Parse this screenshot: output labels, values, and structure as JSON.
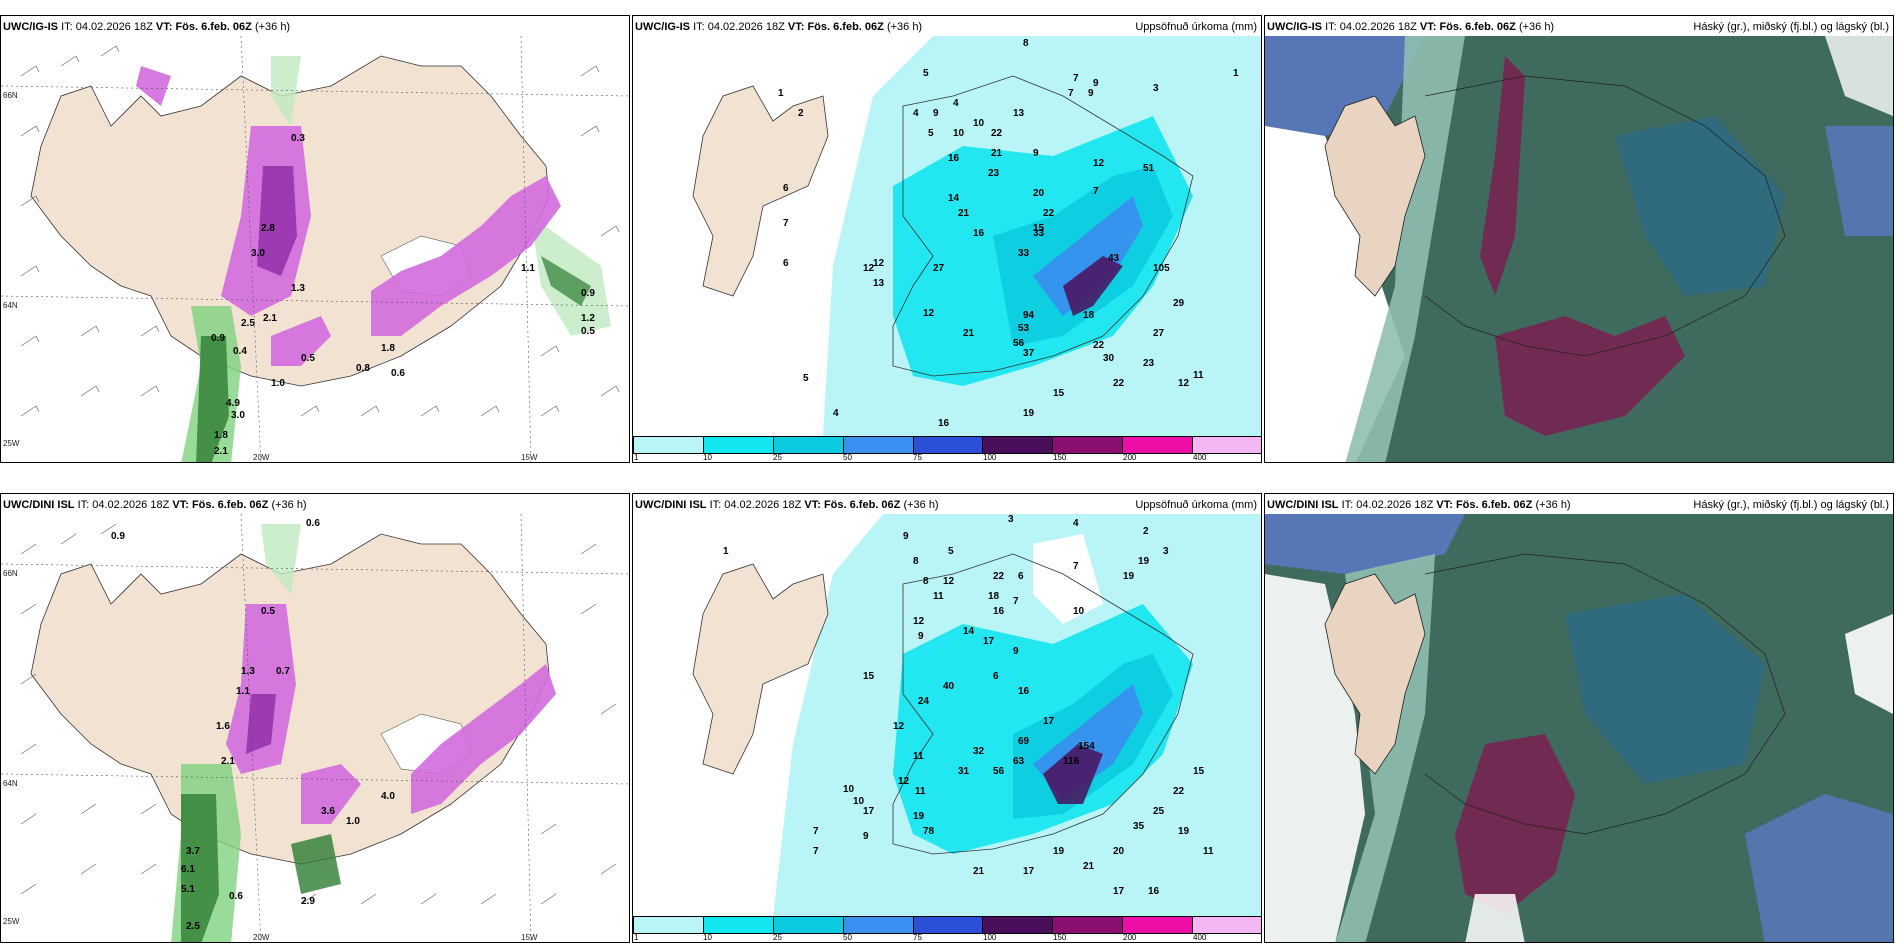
{
  "panels": {
    "p1": {
      "model": "UWC/IG-IS",
      "it_label": "IT:",
      "it_value": "04.02.2026 18Z",
      "vt_label": "VT:",
      "vt_value": "Fös. 6.feb. 06Z",
      "lead": "(+36 h)",
      "field": ""
    },
    "p2": {
      "model": "UWC/IG-IS",
      "it_label": "IT:",
      "it_value": "04.02.2026 18Z",
      "vt_label": "VT:",
      "vt_value": "Fös. 6.feb. 06Z",
      "lead": "(+36 h)",
      "field": "Uppsöfnuð úrkoma (mm)"
    },
    "p3": {
      "model": "UWC/IG-IS",
      "it_label": "IT:",
      "it_value": "04.02.2026 18Z",
      "vt_label": "VT:",
      "vt_value": "Fös. 6.feb. 06Z",
      "lead": "(+36 h)",
      "field": "Háský (gr.), miðský (fj.bl.) og lágský (bl.)"
    },
    "p4": {
      "model": "UWC/DINI ISL",
      "it_label": "IT:",
      "it_value": "04.02.2026 18Z",
      "vt_label": "VT:",
      "vt_value": "Fös. 6.feb. 06Z",
      "lead": "(+36 h)",
      "field": ""
    },
    "p5": {
      "model": "UWC/DINI ISL",
      "it_label": "IT:",
      "it_value": "04.02.2026 18Z",
      "vt_label": "VT:",
      "vt_value": "Fös. 6.feb. 06Z",
      "lead": "(+36 h)",
      "field": "Uppsöfnuð úrkoma (mm)"
    },
    "p6": {
      "model": "UWC/DINI ISL",
      "it_label": "IT:",
      "it_value": "04.02.2026 18Z",
      "vt_label": "VT:",
      "vt_value": "Fös. 6.feb. 06Z",
      "lead": "(+36 h)",
      "field": "Háský (gr.), miðský (fj.bl.) og lágský (bl.)"
    }
  },
  "axes": {
    "lat_n": "66N",
    "lat_s": "64N",
    "lon_25": "25W",
    "lon_20": "20W",
    "lon_15": "15W"
  },
  "legend": {
    "ticks": [
      "1",
      "10",
      "25",
      "50",
      "75",
      "100",
      "150",
      "200",
      "400"
    ],
    "colors": [
      "#b9f5f7",
      "#12e6ee",
      "#0ccbe0",
      "#3a8ff0",
      "#2b4fd6",
      "#4a0f5a",
      "#8a0f6e",
      "#ee0fa8",
      "#f3b6f0"
    ]
  },
  "precip_top": [
    "8",
    "5",
    "1",
    "7",
    "9",
    "7",
    "9",
    "3",
    "1",
    "4",
    "4",
    "9",
    "2",
    "5",
    "10",
    "13",
    "22",
    "10",
    "21",
    "16",
    "23",
    "9",
    "12",
    "20",
    "7",
    "51",
    "14",
    "21",
    "22",
    "33",
    "16",
    "6",
    "12",
    "7",
    "33",
    "15",
    "43",
    "105",
    "12",
    "13",
    "27",
    "12",
    "94",
    "21",
    "53",
    "56",
    "6",
    "37",
    "22",
    "18",
    "12",
    "11",
    "19",
    "4",
    "5",
    "16",
    "29",
    "27",
    "30",
    "22",
    "15",
    "23"
  ],
  "precip_bot": [
    "3",
    "4",
    "9",
    "2",
    "1",
    "5",
    "8",
    "7",
    "3",
    "8",
    "11",
    "12",
    "22",
    "6",
    "18",
    "7",
    "19",
    "16",
    "14",
    "12",
    "10",
    "9",
    "17",
    "9",
    "19",
    "40",
    "6",
    "24",
    "16",
    "15",
    "12",
    "17",
    "11",
    "32",
    "31",
    "69",
    "63",
    "56",
    "154",
    "116",
    "12",
    "11",
    "10",
    "10",
    "17",
    "7",
    "7",
    "9",
    "19",
    "78",
    "21",
    "17",
    "19",
    "21",
    "17",
    "16",
    "20",
    "25",
    "35",
    "22",
    "15",
    "19",
    "11"
  ],
  "wind_top": [
    "0.3",
    "2.8",
    "3.0",
    "1.3",
    "2.5",
    "2.1",
    "0.9",
    "1.0",
    "0.4",
    "4.9",
    "3.0",
    "1.8",
    "2.1",
    "0.9",
    "0.5",
    "1.2",
    "0.8",
    "0.5",
    "0.6",
    "1.8",
    "1.1"
  ],
  "wind_bot": [
    "0.6",
    "0.9",
    "0.5",
    "1.3",
    "1.1",
    "0.7",
    "1.6",
    "2.1",
    "3.7",
    "6.1",
    "5.1",
    "2.5",
    "0.6",
    "4.0",
    "3.6",
    "1.0",
    "2.9"
  ]
}
